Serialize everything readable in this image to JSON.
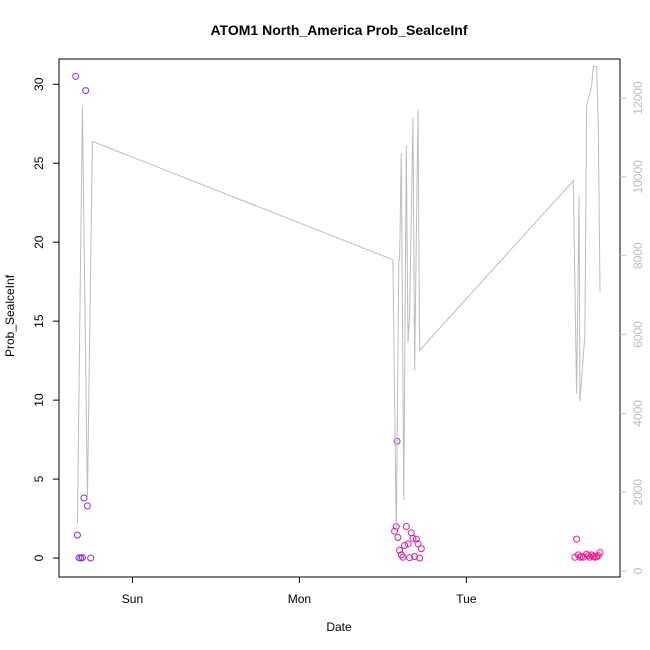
{
  "chart_data": {
    "type": "scatter",
    "title": "ATOM1 North_America Prob_SealceInf",
    "xlabel": "Date",
    "ylabel": "Prob_SealceInf",
    "x_ticks": [
      {
        "label": "Sun",
        "value": 1.0
      },
      {
        "label": "Mon",
        "value": 2.0
      },
      {
        "label": "Tue",
        "value": 3.0
      }
    ],
    "xlim": [
      0.56,
      3.92
    ],
    "ylim": [
      -1.2,
      31.6
    ],
    "y_ticks": [
      0,
      5,
      10,
      15,
      20,
      25,
      30
    ],
    "y2lim": [
      -150,
      12990
    ],
    "y2_ticks": [
      0,
      2000,
      4000,
      6000,
      8000,
      10000,
      12000
    ],
    "grid": false,
    "series": [
      {
        "kind": "points",
        "color_start": "#8a2be2",
        "color_end": "#ff1493",
        "points": [
          [
            0.66,
            30.5
          ],
          [
            0.67,
            1.45
          ],
          [
            0.68,
            0.02
          ],
          [
            0.69,
            0.0
          ],
          [
            0.7,
            0.03
          ],
          [
            0.71,
            3.8
          ],
          [
            0.72,
            29.6
          ],
          [
            0.73,
            3.3
          ],
          [
            0.75,
            0.0
          ],
          [
            2.57,
            1.7
          ],
          [
            2.58,
            2.0
          ],
          [
            2.585,
            7.4
          ],
          [
            2.59,
            1.3
          ],
          [
            2.6,
            0.5
          ],
          [
            2.61,
            0.2
          ],
          [
            2.62,
            0.05
          ],
          [
            2.63,
            0.8
          ],
          [
            2.64,
            2.0
          ],
          [
            2.65,
            0.9
          ],
          [
            2.66,
            0.02
          ],
          [
            2.67,
            1.6
          ],
          [
            2.68,
            1.25
          ],
          [
            2.69,
            0.1
          ],
          [
            2.7,
            1.2
          ],
          [
            2.71,
            0.9
          ],
          [
            2.72,
            0.0
          ],
          [
            2.73,
            0.6
          ],
          [
            3.65,
            0.05
          ],
          [
            3.66,
            1.2
          ],
          [
            3.67,
            0.2
          ],
          [
            3.68,
            0.05
          ],
          [
            3.69,
            0.1
          ],
          [
            3.7,
            0.05
          ],
          [
            3.72,
            0.25
          ],
          [
            3.73,
            0.15
          ],
          [
            3.74,
            0.05
          ],
          [
            3.75,
            0.2
          ],
          [
            3.76,
            0.1
          ],
          [
            3.77,
            0.05
          ],
          [
            3.78,
            0.1
          ],
          [
            3.79,
            0.15
          ],
          [
            3.8,
            0.35
          ]
        ]
      },
      {
        "kind": "line",
        "axis": "right",
        "color": "#bdbdbd",
        "points": [
          [
            0.67,
            1200
          ],
          [
            0.7,
            11800
          ],
          [
            0.73,
            1800
          ],
          [
            0.76,
            10900
          ],
          [
            2.56,
            7900
          ],
          [
            2.58,
            1000
          ],
          [
            2.595,
            7900
          ],
          [
            2.6,
            7900
          ],
          [
            2.61,
            10600
          ],
          [
            2.625,
            1800
          ],
          [
            2.64,
            10800
          ],
          [
            2.65,
            5800
          ],
          [
            2.66,
            6500
          ],
          [
            2.68,
            11500
          ],
          [
            2.69,
            5100
          ],
          [
            2.71,
            11700
          ],
          [
            2.72,
            5600
          ],
          [
            3.64,
            9900
          ],
          [
            3.66,
            4500
          ],
          [
            3.675,
            9500
          ],
          [
            3.68,
            4300
          ],
          [
            3.71,
            6000
          ],
          [
            3.72,
            11800
          ],
          [
            3.75,
            12300
          ],
          [
            3.76,
            12800
          ],
          [
            3.78,
            12800
          ],
          [
            3.79,
            11300
          ],
          [
            3.8,
            7100
          ]
        ]
      }
    ]
  }
}
